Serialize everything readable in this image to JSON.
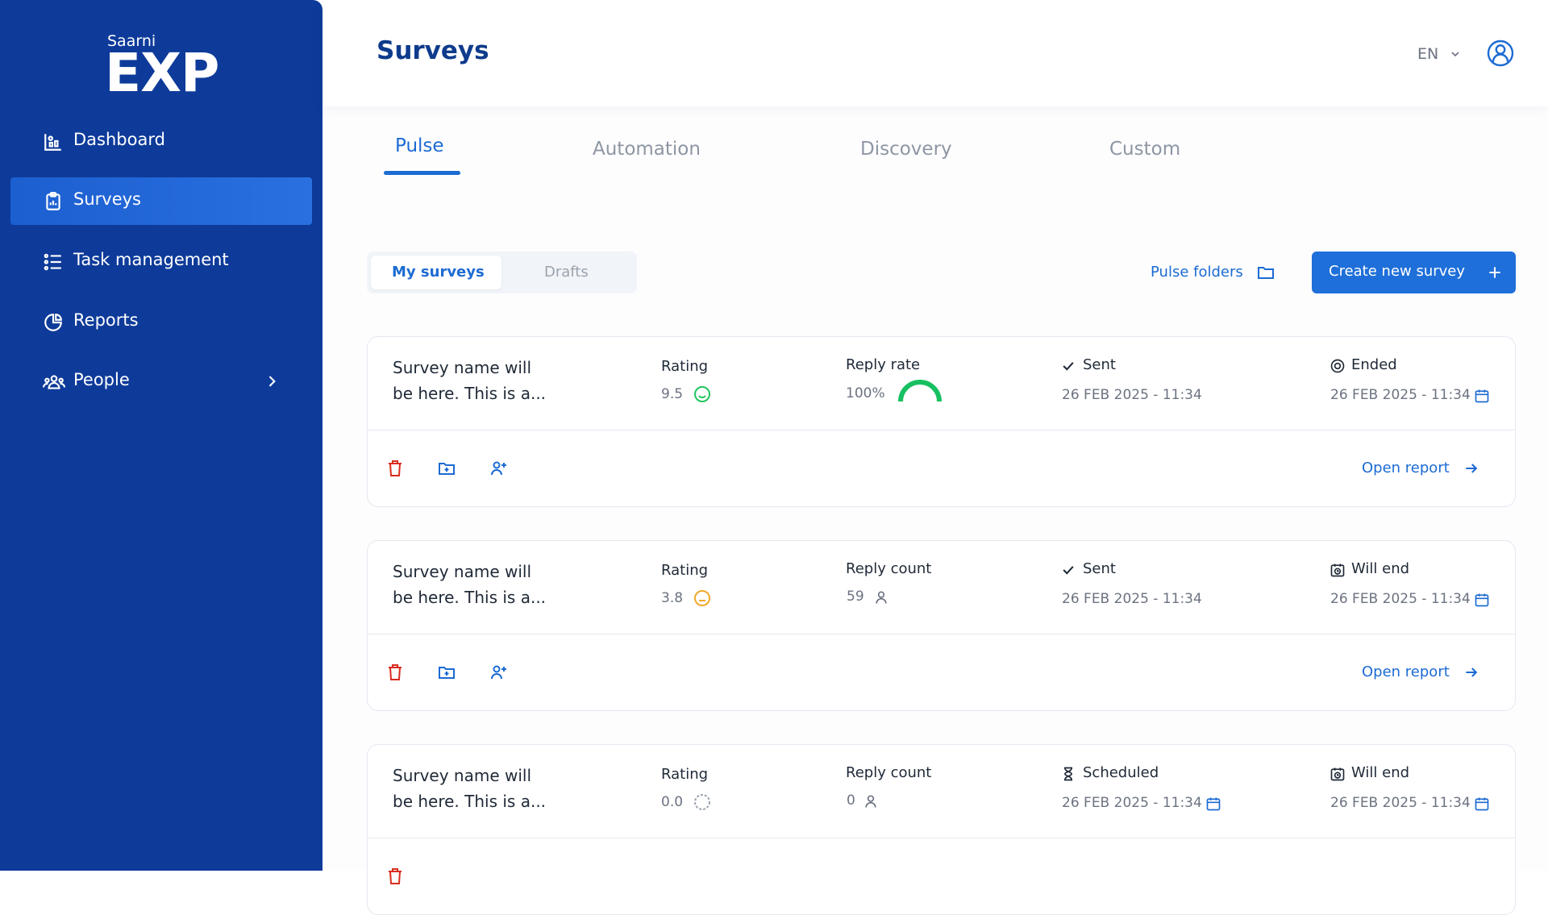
{
  "brand": {
    "small": "Saarni",
    "large": "EXP"
  },
  "nav": [
    {
      "label": "Dashboard"
    },
    {
      "label": "Surveys"
    },
    {
      "label": "Task management"
    },
    {
      "label": "Reports"
    },
    {
      "label": "People"
    }
  ],
  "header": {
    "title": "Surveys",
    "language": "EN"
  },
  "tabs": [
    "Pulse",
    "Automation",
    "Discovery",
    "Custom"
  ],
  "segments": [
    "My surveys",
    "Drafts"
  ],
  "toolbar": {
    "folders": "Pulse folders",
    "create": "Create new survey"
  },
  "surveys": [
    {
      "name": [
        "Survey name will",
        "be here. This is a..."
      ],
      "rating_label": "Rating",
      "rating": "9.5",
      "rating_color": "#22c55e",
      "metric_label": "Reply rate",
      "metric": "100%",
      "status": "Sent",
      "sent_at": "26 FEB 2025 - 11:34",
      "end_status": "Ended",
      "end_at": "26 FEB 2025 - 11:34",
      "open_report": "Open report"
    },
    {
      "name": [
        "Survey name will",
        "be here. This is a..."
      ],
      "rating_label": "Rating",
      "rating": "3.8",
      "rating_color": "#f0a92b",
      "metric_label": "Reply count",
      "metric": 59,
      "status": "Sent",
      "sent_at": "26 FEB 2025 - 11:34",
      "end_status": "Will end",
      "end_at": "26 FEB 2025 - 11:34",
      "open_report": "Open report"
    },
    {
      "name": [
        "Survey name will",
        "be here. This is a..."
      ],
      "rating_label": "Rating",
      "rating": "0.0",
      "rating_color": "#9aa3af",
      "metric_label": "Reply count",
      "metric": 0,
      "status": "Scheduled",
      "sent_at": "26 FEB 2025 - 11:34",
      "end_status": "Will end",
      "end_at": "26 FEB 2025 - 11:34"
    }
  ]
}
